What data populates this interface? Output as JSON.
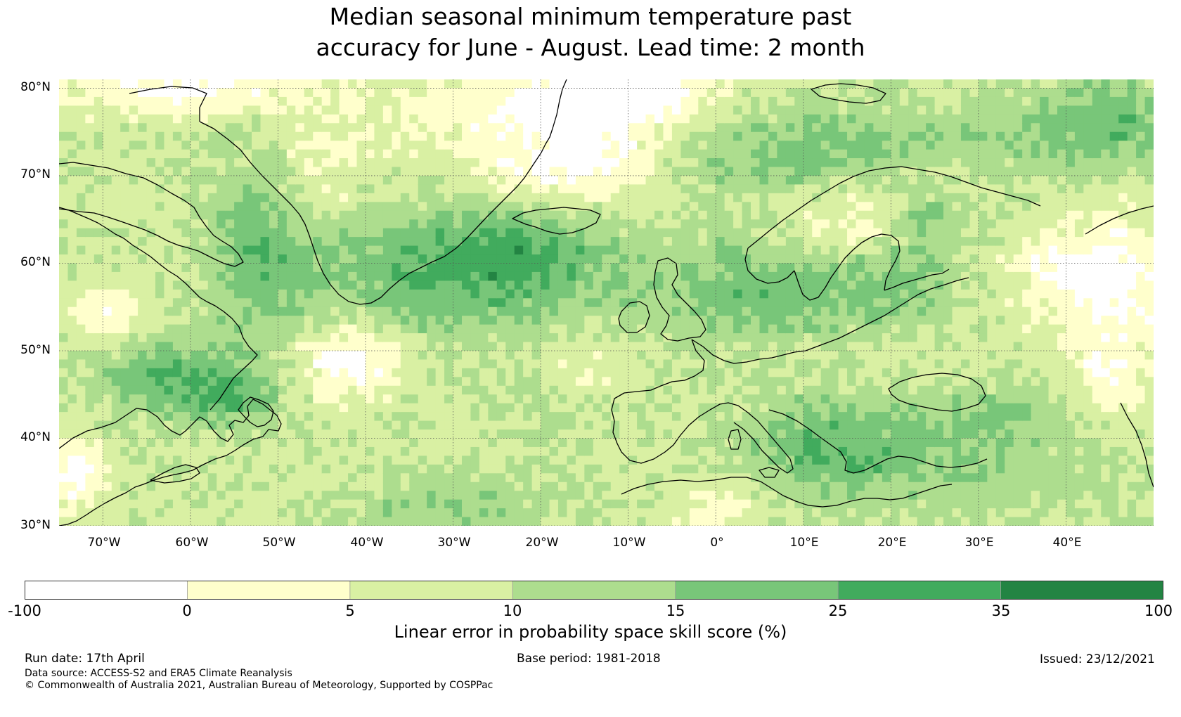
{
  "title": {
    "line1": "Median seasonal minimum temperature past",
    "line2": "accuracy for June - August. Lead time: 2 month"
  },
  "map": {
    "region": "North Atlantic and Europe",
    "lon_range": [
      -75,
      50
    ],
    "lat_range": [
      30,
      81
    ],
    "lat_labels": [
      "80°N",
      "70°N",
      "60°N",
      "50°N",
      "40°N",
      "30°N"
    ],
    "lat_values": [
      80,
      70,
      60,
      50,
      40,
      30
    ],
    "lon_labels": [
      "70°W",
      "60°W",
      "50°W",
      "40°W",
      "30°W",
      "20°W",
      "10°W",
      "0°",
      "10°E",
      "20°E",
      "30°E",
      "40°E"
    ],
    "lon_values": [
      -70,
      -60,
      -50,
      -40,
      -30,
      -20,
      -10,
      0,
      10,
      20,
      30,
      40
    ],
    "gridlines": true
  },
  "colorbar": {
    "boundaries": [
      "-100",
      "0",
      "5",
      "10",
      "15",
      "25",
      "35",
      "100"
    ],
    "colors": [
      "#ffffff",
      "#ffffcc",
      "#d9f0a3",
      "#addd8e",
      "#78c679",
      "#41ab5d",
      "#238443"
    ],
    "label": "Linear error in probability space skill score (%)"
  },
  "footer": {
    "run_date": "Run date: 17th April",
    "base_period": "Base period: 1981-2018",
    "issued": "Issued: 23/12/2021",
    "data_source": "Data source: ACCESS-S2 and ERA5 Climate Reanalysis",
    "copyright": "© Commonwealth of Australia 2021, Australian Bureau of Meteorology, Supported by COSPPac"
  }
}
